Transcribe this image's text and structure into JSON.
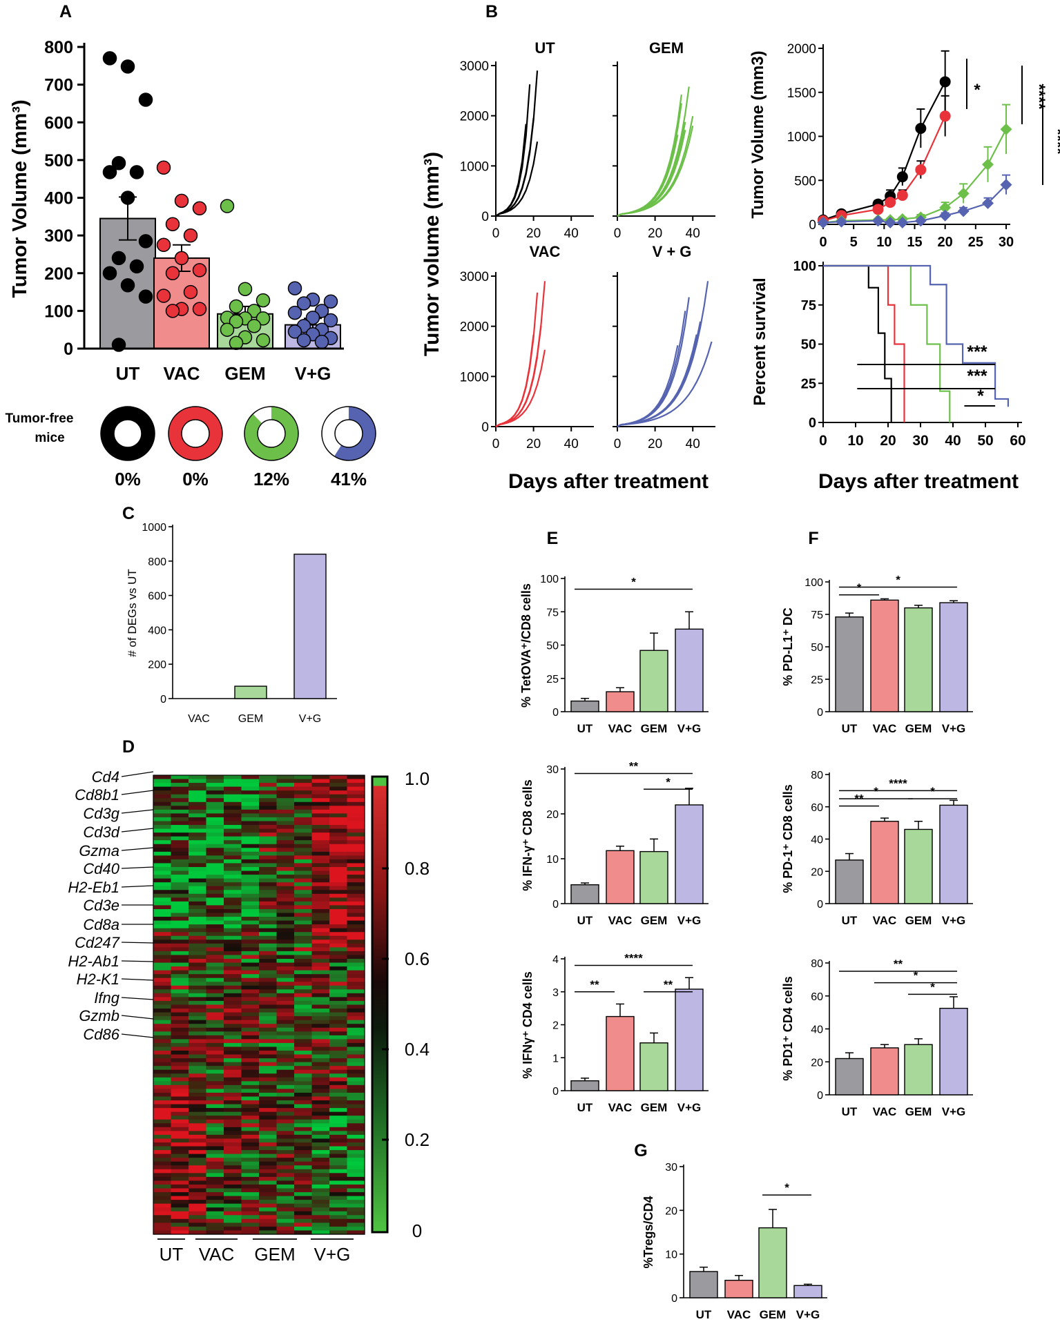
{
  "panel_letters": {
    "A": "A",
    "B": "B",
    "C": "C",
    "D": "D",
    "E": "E",
    "F": "F",
    "G": "G"
  },
  "colors": {
    "UT": "#9b9b9f",
    "VAC": "#f08c8c",
    "GEM": "#a9d99a",
    "VG": "#bdb8e3",
    "UT_dot": "#000000",
    "VAC_dot": "#e8333b",
    "GEM_dot": "#6cc04a",
    "VG_dot": "#5563b0"
  },
  "tumor_free": {
    "label_line1": "Tumor-free",
    "label_line2": "mice",
    "values": [
      "0%",
      "0%",
      "12%",
      "41%"
    ]
  },
  "panel_b_small": {
    "titles": [
      "UT",
      "GEM",
      "VAC",
      "V + G"
    ],
    "ticks_y": [
      "0",
      "1000",
      "2000",
      "3000"
    ],
    "ticks_x": [
      "0",
      "20",
      "40"
    ],
    "ylabel": "Tumor volume (mm³)",
    "xlabel": "Days after treatment"
  },
  "heatmap": {
    "genes": [
      "Cd4",
      "Cd8b1",
      "Cd3g",
      "Cd3d",
      "Gzma",
      "Cd40",
      "H2-Eb1",
      "Cd3e",
      "Cd8a",
      "Cd247",
      "H2-Ab1",
      "H2-K1",
      "Ifng",
      "Gzmb",
      "Cd86"
    ],
    "groups": [
      "UT",
      "VAC",
      "GEM",
      "V+G"
    ],
    "scale": [
      "1.0",
      "0.8",
      "0.6",
      "0.4",
      "0.2",
      "0"
    ]
  },
  "chart_data": [
    {
      "id": "A",
      "type": "bar",
      "title": "",
      "ylabel": "Tumor Volume (mm³)",
      "categories": [
        "UT",
        "VAC",
        "GEM",
        "V+G"
      ],
      "values": [
        345,
        240,
        92,
        63
      ],
      "sem": [
        57,
        35,
        20,
        17
      ],
      "ylim": [
        0,
        800
      ],
      "yticks": [
        0,
        100,
        200,
        300,
        400,
        500,
        600,
        700,
        800
      ],
      "points": [
        [
          770,
          748,
          660,
          492,
          468,
          468,
          400,
          285,
          240,
          218,
          200,
          168,
          138,
          10
        ],
        [
          480,
          392,
          372,
          330,
          300,
          275,
          240,
          208,
          200,
          150,
          140,
          105,
          105,
          100
        ],
        [
          378,
          158,
          128,
          112,
          100,
          82,
          80,
          80,
          72,
          60,
          50,
          30,
          22,
          15
        ],
        [
          160,
          130,
          125,
          120,
          100,
          95,
          82,
          75,
          60,
          50,
          45,
          38,
          28,
          22,
          18
        ]
      ]
    },
    {
      "id": "B-tumor-growth",
      "type": "line",
      "title": "",
      "ylabel": "Tumor Volume  (mm3)",
      "xlim": [
        0,
        30
      ],
      "ylim": [
        0,
        2000
      ],
      "xticks": [
        0,
        5,
        10,
        15,
        20,
        25,
        30
      ],
      "yticks": [
        0,
        500,
        1000,
        1500,
        2000
      ],
      "series": [
        {
          "name": "UT",
          "x": [
            0,
            3,
            9,
            11,
            13,
            16,
            20
          ],
          "y": [
            50,
            120,
            230,
            320,
            540,
            1090,
            1620
          ],
          "err": [
            20,
            30,
            40,
            70,
            100,
            220,
            350
          ]
        },
        {
          "name": "VAC",
          "x": [
            0,
            3,
            9,
            11,
            13,
            16,
            20
          ],
          "y": [
            40,
            100,
            170,
            250,
            330,
            620,
            1230
          ],
          "err": [
            20,
            25,
            30,
            40,
            60,
            100,
            230
          ]
        },
        {
          "name": "GEM",
          "x": [
            0,
            3,
            9,
            11,
            13,
            16,
            20,
            23,
            27,
            30
          ],
          "y": [
            20,
            40,
            50,
            50,
            60,
            80,
            190,
            350,
            680,
            1080
          ],
          "err": [
            10,
            10,
            15,
            15,
            20,
            30,
            60,
            110,
            200,
            280
          ]
        },
        {
          "name": "V+G",
          "x": [
            0,
            3,
            9,
            11,
            13,
            16,
            20,
            23,
            27,
            30
          ],
          "y": [
            20,
            30,
            40,
            20,
            20,
            40,
            100,
            150,
            240,
            450
          ],
          "err": [
            10,
            10,
            10,
            10,
            10,
            15,
            30,
            40,
            60,
            110
          ]
        }
      ],
      "annotations": [
        "*",
        "****",
        "****"
      ]
    },
    {
      "id": "B-survival",
      "type": "line",
      "title": "",
      "ylabel": "Percent survival",
      "xlabel": "Days after treatment",
      "xlim": [
        0,
        60
      ],
      "ylim": [
        0,
        100
      ],
      "xticks": [
        0,
        10,
        20,
        30,
        40,
        50,
        60
      ],
      "yticks": [
        0,
        25,
        50,
        75,
        100
      ],
      "series": [
        {
          "name": "UT",
          "x": [
            0,
            14,
            14,
            17,
            17,
            19,
            19,
            21,
            21
          ],
          "y": [
            100,
            100,
            86,
            86,
            57,
            57,
            28,
            28,
            0
          ]
        },
        {
          "name": "VAC",
          "x": [
            0,
            20,
            20,
            22,
            22,
            25,
            25
          ],
          "y": [
            100,
            100,
            75,
            75,
            50,
            50,
            0
          ]
        },
        {
          "name": "GEM",
          "x": [
            0,
            27,
            27,
            32,
            32,
            36,
            36,
            39,
            39
          ],
          "y": [
            100,
            100,
            75,
            75,
            50,
            50,
            20,
            20,
            0
          ]
        },
        {
          "name": "V+G",
          "x": [
            0,
            33,
            33,
            38,
            38,
            43,
            43,
            53,
            53,
            57,
            57
          ],
          "y": [
            100,
            100,
            88,
            88,
            50,
            50,
            38,
            38,
            15,
            15,
            10
          ]
        }
      ],
      "annotations": [
        "***",
        "***",
        "*"
      ]
    },
    {
      "id": "C",
      "type": "bar",
      "ylabel": "# of DEGs vs UT",
      "categories": [
        "VAC",
        "GEM",
        "V+G"
      ],
      "values": [
        0,
        72,
        840
      ],
      "ylim": [
        0,
        1000
      ],
      "yticks": [
        0,
        200,
        400,
        600,
        800,
        1000
      ]
    },
    {
      "id": "E1",
      "type": "bar",
      "ylabel": "% TetOVA⁺/CD8 cells",
      "categories": [
        "UT",
        "VAC",
        "GEM",
        "V+G"
      ],
      "values": [
        8,
        15,
        46,
        62
      ],
      "err": [
        2,
        3,
        13,
        13
      ],
      "ylim": [
        0,
        100
      ],
      "yticks": [
        0,
        25,
        50,
        75,
        100
      ],
      "sig": [
        [
          "UT",
          "V+G",
          "*"
        ]
      ]
    },
    {
      "id": "F1",
      "type": "bar",
      "ylabel": "% PD-L1⁺ DC",
      "categories": [
        "UT",
        "VAC",
        "GEM",
        "V+G"
      ],
      "values": [
        73,
        86,
        80,
        84
      ],
      "err": [
        3,
        1,
        2,
        1.5
      ],
      "ylim": [
        0,
        100
      ],
      "yticks": [
        0,
        25,
        50,
        75,
        100
      ],
      "sig": [
        [
          "UT",
          "VAC",
          "*"
        ],
        [
          "UT",
          "V+G",
          "*"
        ]
      ]
    },
    {
      "id": "E2",
      "type": "bar",
      "ylabel": "% IFN-γ⁺ CD8 cells",
      "categories": [
        "UT",
        "VAC",
        "GEM",
        "V+G"
      ],
      "values": [
        4.2,
        11.8,
        11.6,
        22
      ],
      "err": [
        0.4,
        1,
        2.8,
        3.7
      ],
      "ylim": [
        0,
        30
      ],
      "yticks": [
        0,
        10,
        20,
        30
      ],
      "sig": [
        [
          "UT",
          "V+G",
          "**"
        ],
        [
          "GEM",
          "V+G",
          "*"
        ]
      ]
    },
    {
      "id": "F2",
      "type": "bar",
      "ylabel": "% PD-1⁺ CD8 cells",
      "categories": [
        "UT",
        "VAC",
        "GEM",
        "V+G"
      ],
      "values": [
        27,
        51,
        46,
        61
      ],
      "err": [
        4,
        2,
        5,
        3
      ],
      "ylim": [
        0,
        80
      ],
      "yticks": [
        0,
        20,
        40,
        60,
        80
      ],
      "sig": [
        [
          "UT",
          "V+G",
          "****"
        ],
        [
          "UT",
          "GEM",
          "*"
        ],
        [
          "UT",
          "VAC",
          "**"
        ],
        [
          "GEM",
          "V+G",
          "*"
        ]
      ]
    },
    {
      "id": "E3",
      "type": "bar",
      "ylabel": "% IFNγ⁺ CD4 cells",
      "categories": [
        "UT",
        "VAC",
        "GEM",
        "V+G"
      ],
      "values": [
        0.3,
        2.25,
        1.45,
        3.08
      ],
      "err": [
        0.08,
        0.38,
        0.3,
        0.35
      ],
      "ylim": [
        0,
        4
      ],
      "yticks": [
        0,
        1,
        2,
        3,
        4
      ],
      "sig": [
        [
          "UT",
          "V+G",
          "****"
        ],
        [
          "UT",
          "VAC",
          "**"
        ],
        [
          "GEM",
          "V+G",
          "**"
        ]
      ]
    },
    {
      "id": "F3",
      "type": "bar",
      "ylabel": "% PD1⁺ CD4 cells",
      "categories": [
        "UT",
        "VAC",
        "GEM",
        "V+G"
      ],
      "values": [
        22,
        28.5,
        30.5,
        52.5
      ],
      "err": [
        3.5,
        2,
        3.5,
        7
      ],
      "ylim": [
        0,
        80
      ],
      "yticks": [
        0,
        20,
        40,
        60,
        80
      ],
      "sig": [
        [
          "UT",
          "V+G",
          "**"
        ],
        [
          "VAC",
          "V+G",
          "*"
        ],
        [
          "GEM",
          "V+G",
          "*"
        ]
      ]
    },
    {
      "id": "G",
      "type": "bar",
      "ylabel": "%Tregs/CD4",
      "categories": [
        "UT",
        "VAC",
        "GEM",
        "V+G"
      ],
      "values": [
        6,
        4,
        16,
        2.8
      ],
      "err": [
        1,
        1.1,
        4.2,
        0.3
      ],
      "ylim": [
        0,
        30
      ],
      "yticks": [
        0,
        10,
        20,
        30
      ],
      "sig": [
        [
          "GEM",
          "V+G",
          "*"
        ]
      ]
    }
  ]
}
